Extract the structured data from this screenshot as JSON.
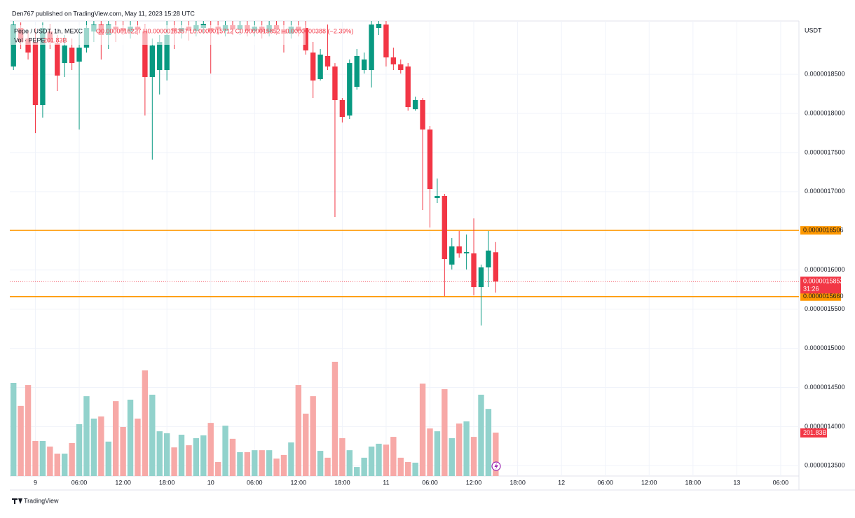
{
  "header": {
    "publisher": "Den767 published on TradingView.com, May 11, 2023 15:28 UTC",
    "brand": "TradingView"
  },
  "chart_data": {
    "type": "candlestick",
    "legend": {
      "symbol": "Pepe / USDT, 1h, MEXC",
      "ohlc": "O0.0000016227 H0.0000016357 L0.0000015712 C0.0000015852 −0.0000000388 (−2.39%)",
      "volume": "Vol · PEPE",
      "volume_value": "201.83B"
    },
    "axis_unit": "USDT",
    "categories": [
      null,
      null,
      null,
      "9",
      null,
      null,
      null,
      null,
      null,
      "06:00",
      null,
      null,
      null,
      null,
      null,
      "12:00",
      null,
      null,
      null,
      null,
      null,
      "18:00",
      null,
      null,
      null,
      null,
      null,
      "10",
      null,
      null,
      null,
      null,
      null,
      "06:00",
      null,
      null,
      null,
      null,
      null,
      "12:00",
      null,
      null,
      null,
      null,
      null,
      "18:00",
      null,
      null,
      null,
      null,
      null,
      "11",
      null,
      null,
      null,
      null,
      null,
      "06:00",
      null,
      null,
      null,
      null,
      null,
      "12:00",
      null,
      null,
      null,
      null,
      null,
      "18:00",
      null,
      null,
      null,
      null,
      null,
      "12",
      null,
      null,
      null,
      null,
      null,
      "06:00",
      null,
      null,
      null,
      null,
      null,
      "12:00",
      null,
      null,
      null,
      null,
      null,
      "18:00",
      null,
      null,
      null,
      null,
      null,
      "13",
      null,
      null,
      null,
      null,
      null,
      "06:00",
      null,
      null
    ],
    "open": [
      1.8599e-06,
      1.909e-06,
      1.8956e-06,
      1.8912e-06,
      1.8107e-06,
      1.9046e-06,
      1.8894e-06,
      1.8643e-06,
      1.884e-06,
      1.8661e-06,
      1.884e-06,
      1.9046e-06,
      1.9135e-06,
      1.9001e-06,
      1.9108e-06,
      1.909e-06,
      1.9046e-06,
      1.9108e-06,
      1.9046e-06,
      1.8465e-06,
      1.8554e-06,
      1.8554e-06,
      1.909e-06,
      1.9046e-06,
      1.9108e-06,
      1.9055e-06,
      1.909e-06,
      1.909e-06,
      1.9108e-06,
      1.9055e-06,
      1.9126e-06,
      1.9073e-06,
      1.9126e-06,
      1.9055e-06,
      1.9108e-06,
      1.9037e-06,
      1.9126e-06,
      1.9073e-06,
      1.9019e-06,
      1.9108e-06,
      1.909e-06,
      1.8777e-06,
      1.8438e-06,
      1.8733e-06,
      1.8599e-06,
      1.817e-06,
      1.7973e-06,
      1.8339e-06,
      1.8554e-06,
      1.8554e-06,
      1.909e-06,
      1.9135e-06,
      1.8715e-06,
      1.8626e-06,
      1.8599e-06,
      1.8053e-06,
      1.817e-06,
      1.7794e-06,
      1.6918e-06,
      1.6945e-06,
      1.6069e-06,
      1.6301e-06,
      1.6212e-06,
      1.6212e-06,
      1.5782e-06,
      1.6033e-06,
      1.6227e-06,
      null,
      null,
      null,
      null,
      null,
      null,
      null,
      null,
      null,
      null,
      null,
      null,
      null,
      null,
      null,
      null,
      null,
      null,
      null,
      null,
      null,
      null,
      null,
      null,
      null,
      null,
      null,
      null,
      null,
      null,
      null,
      null,
      null,
      null,
      null,
      null,
      null,
      null,
      null,
      null,
      null
    ],
    "high": [
      1.918e-06,
      1.9162e-06,
      1.9046e-06,
      1.909e-06,
      1.9162e-06,
      1.9135e-06,
      1.9001e-06,
      1.9001e-06,
      1.8956e-06,
      1.909e-06,
      1.918e-06,
      1.918e-06,
      1.918e-06,
      1.918e-06,
      1.918e-06,
      1.918e-06,
      1.918e-06,
      1.918e-06,
      1.9135e-06,
      1.8956e-06,
      1.9001e-06,
      1.918e-06,
      1.918e-06,
      1.918e-06,
      1.918e-06,
      1.918e-06,
      1.918e-06,
      1.918e-06,
      1.918e-06,
      1.918e-06,
      1.918e-06,
      1.918e-06,
      1.918e-06,
      1.918e-06,
      1.918e-06,
      1.918e-06,
      1.918e-06,
      1.918e-06,
      1.918e-06,
      1.918e-06,
      1.918e-06,
      1.8912e-06,
      1.8822e-06,
      1.9135e-06,
      1.8643e-06,
      1.8196e-06,
      1.8688e-06,
      1.8822e-06,
      1.8777e-06,
      1.918e-06,
      1.918e-06,
      1.918e-06,
      1.884e-06,
      1.8688e-06,
      1.8643e-06,
      1.8214e-06,
      1.8196e-06,
      1.7839e-06,
      1.7168e-06,
      1.6972e-06,
      1.6408e-06,
      1.6498e-06,
      1.6453e-06,
      1.6659e-06,
      1.6069e-06,
      1.6498e-06,
      1.6357e-06,
      null,
      null,
      null,
      null,
      null,
      null,
      null,
      null,
      null,
      null,
      null,
      null,
      null,
      null,
      null,
      null,
      null,
      null,
      null,
      null,
      null,
      null,
      null,
      null,
      null,
      null,
      null,
      null,
      null,
      null,
      null,
      null,
      null,
      null,
      null,
      null,
      null,
      null,
      null,
      null,
      null
    ],
    "low": [
      1.8554e-06,
      1.8822e-06,
      1.8688e-06,
      1.7749e-06,
      1.7946e-06,
      1.8822e-06,
      1.8286e-06,
      1.8465e-06,
      1.8554e-06,
      1.7794e-06,
      1.8777e-06,
      1.8912e-06,
      1.8688e-06,
      1.8822e-06,
      1.8912e-06,
      1.9001e-06,
      1.8956e-06,
      1.9001e-06,
      1.7973e-06,
      1.741e-06,
      1.8241e-06,
      1.842e-06,
      1.8822e-06,
      1.8956e-06,
      1.893e-06,
      1.8983e-06,
      1.9019e-06,
      1.8509e-06,
      1.9001e-06,
      1.8983e-06,
      1.9001e-06,
      1.9001e-06,
      1.8983e-06,
      1.8983e-06,
      1.8956e-06,
      1.8983e-06,
      1.9001e-06,
      1.8777e-06,
      1.8956e-06,
      1.8983e-06,
      1.8751e-06,
      1.8196e-06,
      1.842e-06,
      1.8554e-06,
      1.6677e-06,
      1.7884e-06,
      1.7928e-06,
      1.8304e-06,
      1.8509e-06,
      1.8331e-06,
      1.9001e-06,
      1.8599e-06,
      1.8554e-06,
      1.8509e-06,
      1.8036e-06,
      1.8036e-06,
      1.6766e-06,
      1.6543e-06,
      1.6855e-06,
      1.5666e-06,
      1.6006e-06,
      1.6158e-06,
      1.6006e-06,
      1.5675e-06,
      1.5291e-06,
      1.5782e-06,
      1.5712e-06,
      null,
      null,
      null,
      null,
      null,
      null,
      null,
      null,
      null,
      null,
      null,
      null,
      null,
      null,
      null,
      null,
      null,
      null,
      null,
      null,
      null,
      null,
      null,
      null,
      null,
      null,
      null,
      null,
      null,
      null,
      null,
      null,
      null,
      null,
      null,
      null,
      null,
      null,
      null,
      null,
      null
    ],
    "close": [
      1.9135e-06,
      1.8912e-06,
      1.8777e-06,
      1.8107e-06,
      1.909e-06,
      1.8912e-06,
      1.8483e-06,
      1.8867e-06,
      1.8643e-06,
      1.884e-06,
      1.909e-06,
      1.9135e-06,
      1.9001e-06,
      1.9135e-06,
      1.9073e-06,
      1.9046e-06,
      1.9108e-06,
      1.9073e-06,
      1.8465e-06,
      1.8867e-06,
      1.8912e-06,
      1.9001e-06,
      1.9046e-06,
      1.909e-06,
      1.9055e-06,
      1.9126e-06,
      1.9144e-06,
      1.9046e-06,
      1.9073e-06,
      1.9126e-06,
      1.9073e-06,
      1.9126e-06,
      1.9055e-06,
      1.9108e-06,
      1.9037e-06,
      1.9126e-06,
      1.9073e-06,
      1.9019e-06,
      1.9108e-06,
      1.9055e-06,
      1.8804e-06,
      1.842e-06,
      1.8751e-06,
      1.8599e-06,
      1.817e-06,
      1.7955e-06,
      1.8643e-06,
      1.8733e-06,
      1.8688e-06,
      1.9135e-06,
      1.9144e-06,
      1.8715e-06,
      1.8626e-06,
      1.8554e-06,
      1.808e-06,
      1.817e-06,
      1.7794e-06,
      1.7034e-06,
      1.6945e-06,
      1.614e-06,
      1.6301e-06,
      1.6212e-06,
      1.623e-06,
      1.5782e-06,
      1.6033e-06,
      1.6248e-06,
      1.5852e-06,
      null,
      null,
      null,
      null,
      null,
      null,
      null,
      null,
      null,
      null,
      null,
      null,
      null,
      null,
      null,
      null,
      null,
      null,
      null,
      null,
      null,
      null,
      null,
      null,
      null,
      null,
      null,
      null,
      null,
      null,
      null,
      null,
      null,
      null,
      null,
      null,
      null,
      null,
      null,
      null,
      null
    ],
    "volume": [
      433,
      326,
      423,
      163,
      163,
      137,
      104,
      104,
      153,
      241,
      371,
      267,
      277,
      160,
      348,
      228,
      355,
      267,
      491,
      378,
      208,
      199,
      133,
      192,
      143,
      176,
      189,
      247,
      65,
      234,
      173,
      111,
      111,
      120,
      120,
      120,
      81,
      98,
      156,
      423,
      290,
      371,
      117,
      85,
      531,
      176,
      120,
      42,
      85,
      137,
      150,
      146,
      182,
      85,
      65,
      62,
      430,
      221,
      208,
      404,
      176,
      244,
      254,
      182,
      378,
      312,
      201.83,
      null,
      null,
      null,
      null,
      null,
      null,
      null,
      null,
      null,
      null,
      null,
      null,
      null,
      null,
      null,
      null,
      null,
      null,
      null,
      null,
      null,
      null,
      null,
      null,
      null,
      null,
      null,
      null,
      null,
      null,
      null,
      null,
      null,
      null,
      null,
      null,
      null,
      null,
      null,
      null,
      null
    ],
    "volume_value_labels": [
      null,
      null,
      null,
      null,
      null,
      null,
      null,
      null,
      null,
      null,
      null,
      null,
      null,
      null,
      null,
      null,
      null,
      null,
      null,
      null,
      null,
      null,
      null,
      null,
      null,
      null,
      null,
      null,
      null,
      null,
      null,
      null,
      null,
      null,
      null,
      null,
      null,
      null,
      null,
      null,
      null,
      null,
      null,
      null,
      null,
      null,
      null,
      null,
      null,
      null,
      null,
      null,
      null,
      null,
      null,
      null,
      null,
      null,
      null,
      null,
      null,
      null,
      null,
      null,
      null,
      null,
      "201.83B",
      null,
      null,
      null,
      null,
      null,
      null,
      null,
      null,
      null,
      null,
      null,
      null,
      null,
      null,
      null,
      null,
      null,
      null,
      null,
      null,
      null,
      null,
      null,
      null,
      null,
      null,
      null,
      null,
      null,
      null,
      null,
      null,
      null,
      null,
      null,
      null,
      null,
      null,
      null,
      null,
      null
    ],
    "ylim": [
      1.3369e-06,
      1.918e-06
    ],
    "yticks": [
      {
        "value": 1.85e-06,
        "label": "0.0000018500"
      },
      {
        "value": 1.8e-06,
        "label": "0.0000018000"
      },
      {
        "value": 1.75e-06,
        "label": "0.0000017500"
      },
      {
        "value": 1.7e-06,
        "label": "0.0000017000"
      },
      {
        "value": 1.6e-06,
        "label": "0.0000016000"
      },
      {
        "value": 1.55e-06,
        "label": "0.0000015500"
      },
      {
        "value": 1.5e-06,
        "label": "0.0000015000"
      },
      {
        "value": 1.45e-06,
        "label": "0.0000014500"
      },
      {
        "value": 1.4e-06,
        "label": "0.0000014000"
      },
      {
        "value": 1.35e-06,
        "label": "0.0000013500"
      }
    ],
    "volume_ylim": [
      0,
      2116
    ],
    "levels": [
      {
        "value": 1.6506e-06,
        "label": "0.0000016506",
        "color": "#ff9800"
      },
      {
        "value": 1.566e-06,
        "label": "0.0000015660",
        "color": "#ff9800"
      }
    ],
    "last_price": {
      "value": 1.5852e-06,
      "label": "0.0000015852",
      "countdown": "31:26",
      "color": "#f23645"
    },
    "up_color": "#089981",
    "down_color": "#f23645",
    "up_volume_color": "#92d2cc",
    "down_volume_color": "#f7a9a7",
    "grid": true
  }
}
